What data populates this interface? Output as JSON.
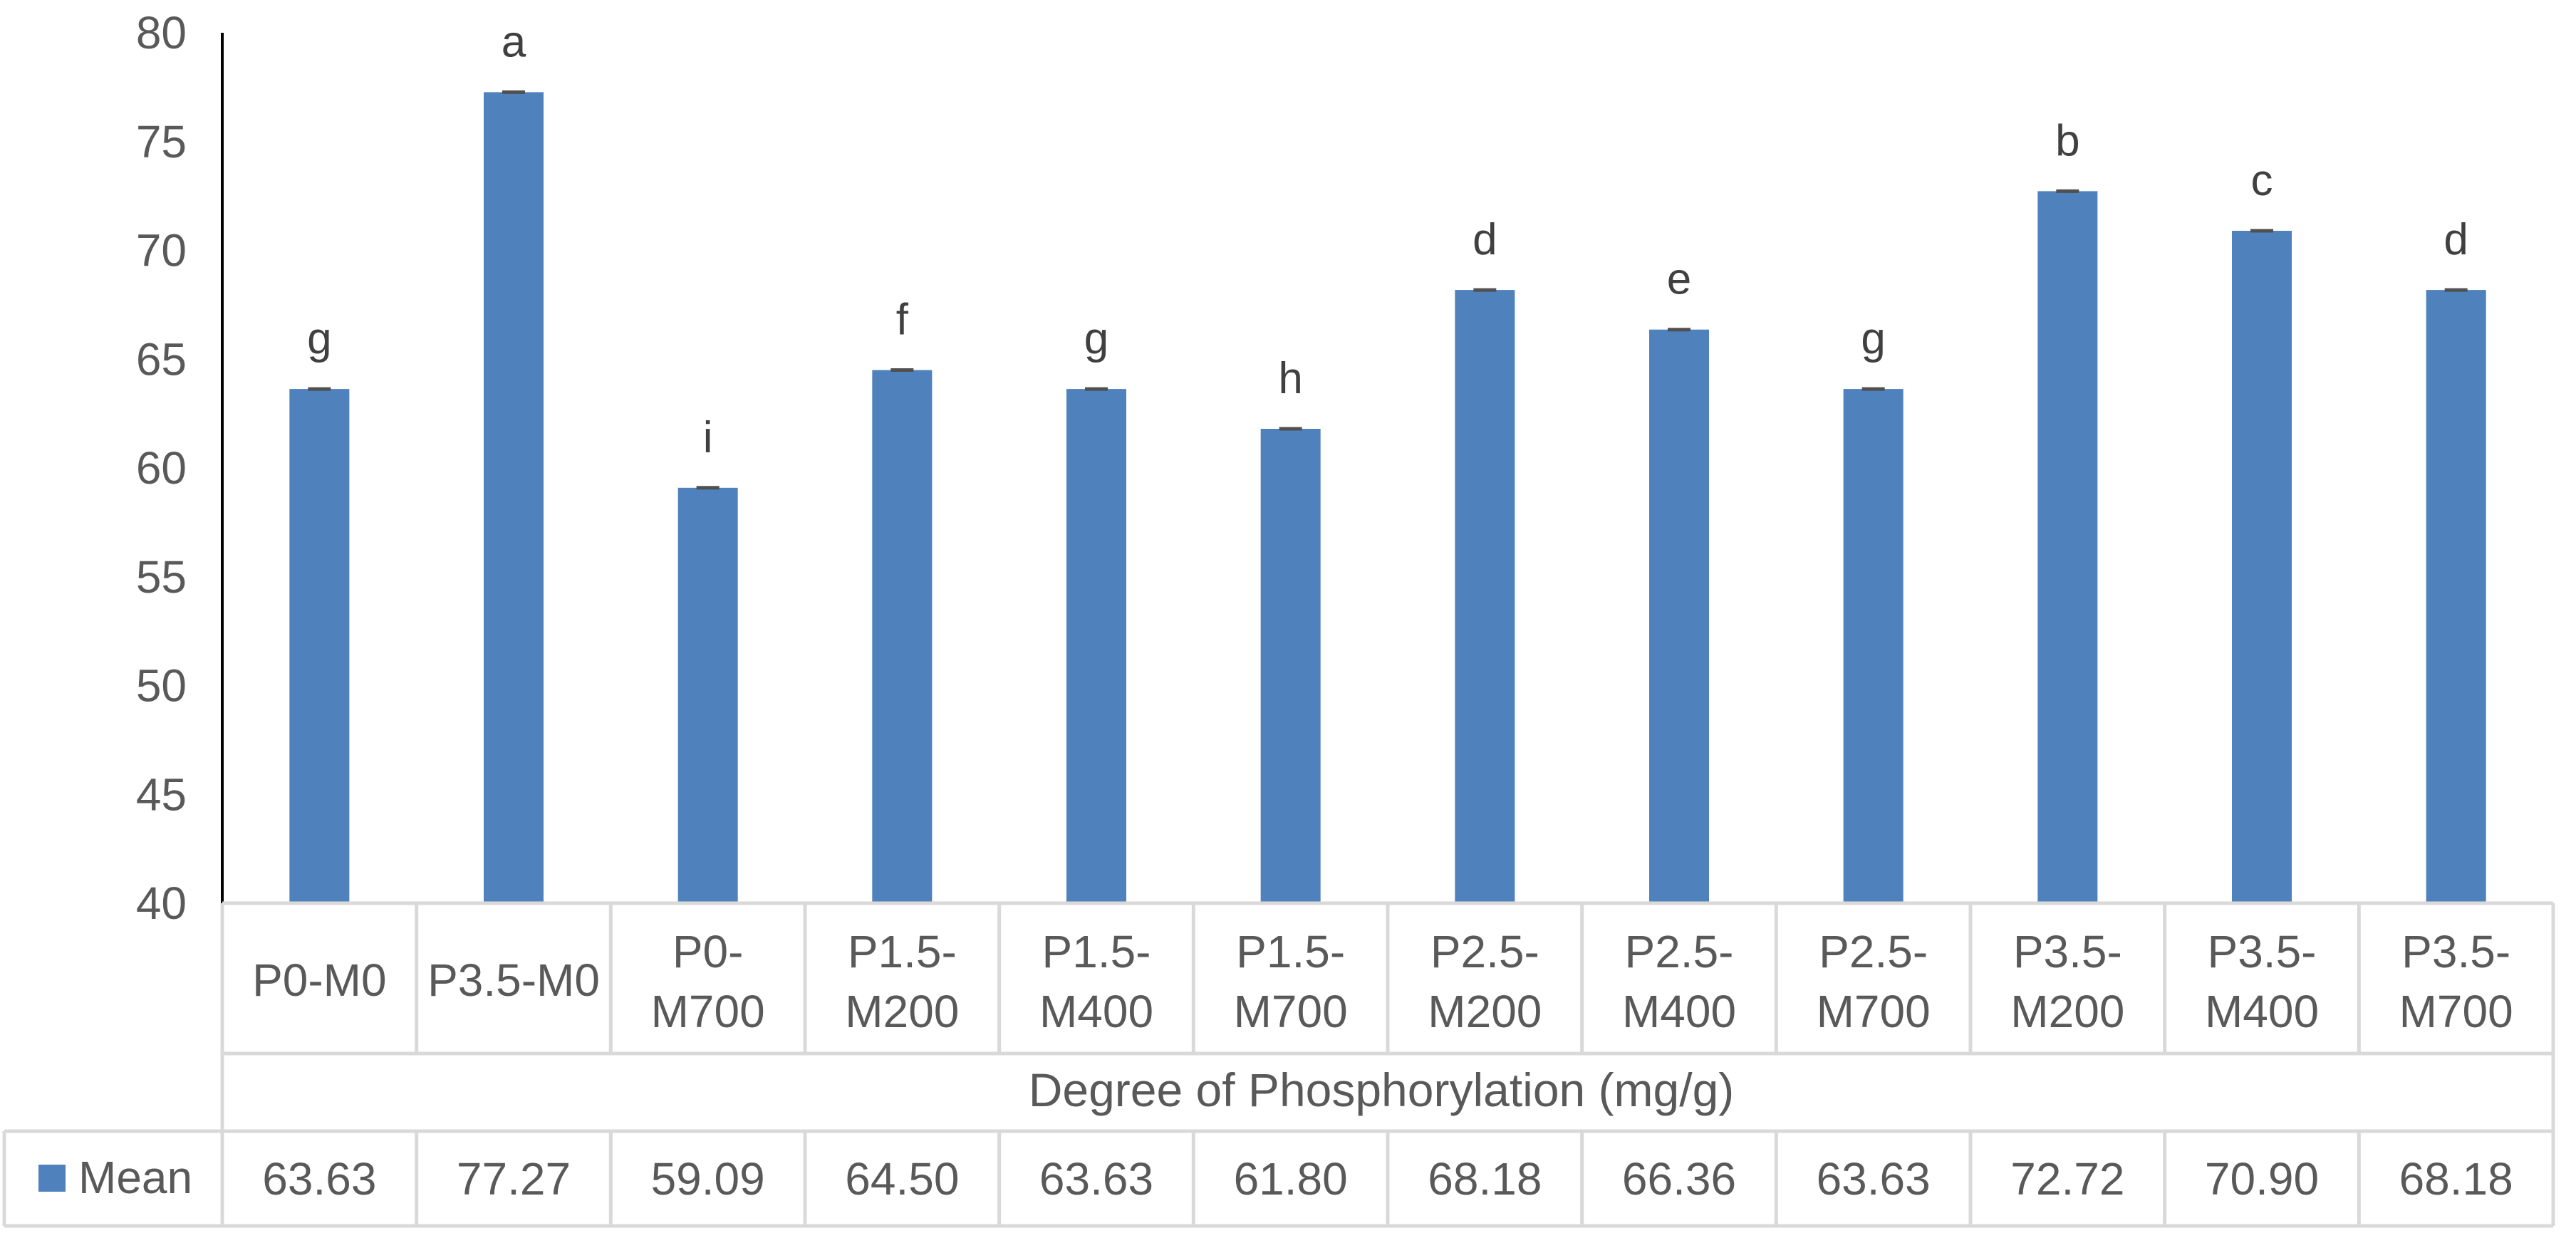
{
  "chart_data": {
    "type": "bar",
    "title": "",
    "xlabel": "Degree of Phosphorylation (mg/g)",
    "ylabel": "",
    "ylim": [
      40,
      80
    ],
    "yticks": [
      40,
      45,
      50,
      55,
      60,
      65,
      70,
      75,
      80
    ],
    "categories": [
      [
        "P0-M0"
      ],
      [
        "P3.5-M0"
      ],
      [
        "P0-",
        "M700"
      ],
      [
        "P1.5-",
        "M200"
      ],
      [
        "P1.5-",
        "M400"
      ],
      [
        "P1.5-",
        "M700"
      ],
      [
        "P2.5-",
        "M200"
      ],
      [
        "P2.5-",
        "M400"
      ],
      [
        "P2.5-",
        "M700"
      ],
      [
        "P3.5-",
        "M200"
      ],
      [
        "P3.5-",
        "M400"
      ],
      [
        "P3.5-",
        "M700"
      ]
    ],
    "series": [
      {
        "name": "Mean",
        "color": "#4F81BD",
        "values": [
          63.63,
          77.27,
          59.09,
          64.5,
          63.63,
          61.8,
          68.18,
          66.36,
          63.63,
          72.72,
          70.9,
          68.18
        ],
        "value_labels": [
          "63.63",
          "77.27",
          "59.09",
          "64.50",
          "63.63",
          "61.80",
          "68.18",
          "66.36",
          "63.63",
          "72.72",
          "70.90",
          "68.18"
        ],
        "significance_letters": [
          "g",
          "a",
          "i",
          "f",
          "g",
          "h",
          "d",
          "e",
          "g",
          "b",
          "c",
          "d"
        ]
      }
    ],
    "legend": "data-table",
    "grid": false
  }
}
